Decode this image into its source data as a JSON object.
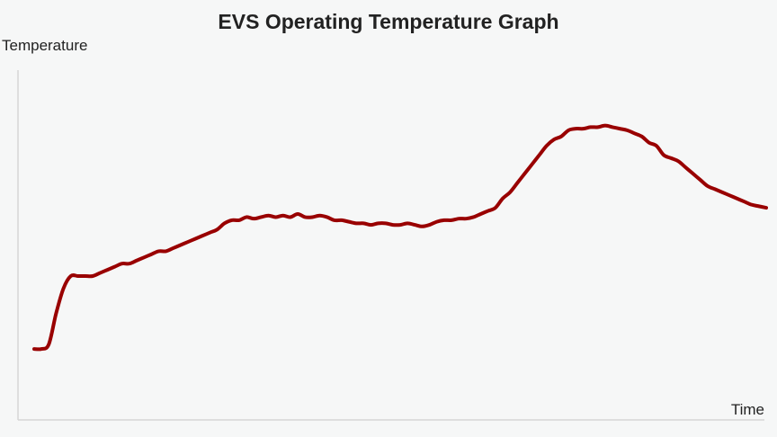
{
  "chart_data": {
    "type": "line",
    "title": "EVS Operating Temperature Graph",
    "xlabel": "Time",
    "ylabel": "Temperature",
    "xlim": [
      0,
      100
    ],
    "ylim": [
      0,
      100
    ],
    "grid": false,
    "legend": "none",
    "colors": {
      "line": "#990000",
      "axis": "#d6d6d6",
      "background": "#f6f7f7"
    },
    "series": [
      {
        "x": [
          0,
          1,
          2,
          3,
          4,
          5,
          6,
          7,
          8,
          9,
          10,
          11,
          12,
          13,
          14,
          15,
          16,
          17,
          18,
          19,
          20,
          21,
          22,
          23,
          24,
          25,
          26,
          27,
          28,
          29,
          30,
          31,
          32,
          33,
          34,
          35,
          36,
          37,
          38,
          39,
          40,
          41,
          42,
          43,
          44,
          45,
          46,
          47,
          48,
          49,
          50,
          51,
          52,
          53,
          54,
          55,
          56,
          57,
          58,
          59,
          60,
          61,
          62,
          63,
          64,
          65,
          66,
          67,
          68,
          69,
          70,
          71,
          72,
          73,
          74,
          75,
          76,
          77,
          78,
          79,
          80,
          81,
          82,
          83,
          84,
          85,
          86,
          87,
          88,
          89,
          90,
          91,
          92,
          93,
          94,
          95,
          96,
          97,
          98,
          99,
          100
        ],
        "values": [
          16.5,
          16.5,
          18,
          28,
          36,
          40,
          40,
          40,
          40,
          41,
          42,
          43,
          44,
          44,
          45,
          46,
          47,
          48,
          48,
          49,
          50,
          51,
          52,
          53,
          54,
          55,
          57,
          58,
          58,
          59,
          58.5,
          59,
          59.5,
          59,
          59.5,
          59,
          60,
          59,
          59,
          59.5,
          59,
          58,
          58,
          57.5,
          57,
          57,
          56.5,
          57,
          57,
          56.5,
          56.5,
          57,
          56.5,
          56,
          56.5,
          57.5,
          58,
          58,
          58.5,
          58.5,
          59,
          60,
          61,
          62,
          65,
          67,
          70,
          73,
          76,
          79,
          82,
          84,
          85,
          87,
          87.5,
          87.5,
          88,
          88,
          88.5,
          88,
          87.5,
          87,
          86,
          85,
          83,
          82,
          79,
          78,
          77,
          75,
          73,
          71,
          69,
          68,
          67,
          66,
          65,
          64,
          63,
          62.5,
          62
        ]
      }
    ]
  }
}
